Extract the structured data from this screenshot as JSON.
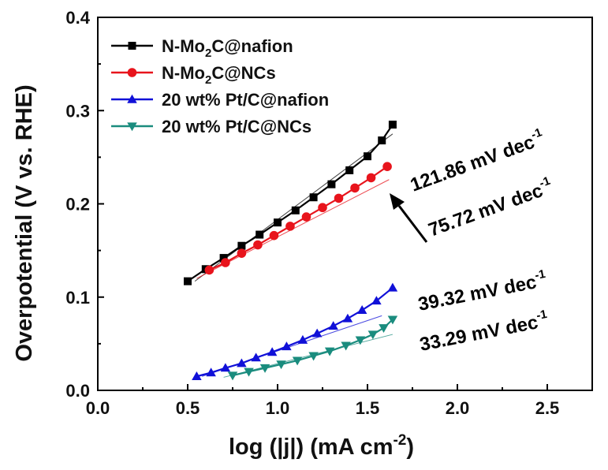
{
  "chart_data": {
    "type": "line",
    "xlabel": "log (|j|) (mA cm",
    "xlabel_sup": "-2",
    "xlabel_tail": ")",
    "ylabel": "Overpotential (V vs. RHE)",
    "xlim": [
      0.0,
      2.75
    ],
    "ylim": [
      0.0,
      0.4
    ],
    "xticks": [
      0.0,
      0.5,
      1.0,
      1.5,
      2.0,
      2.5
    ],
    "xtick_labels": [
      "0.0",
      "0.5",
      "1.0",
      "1.5",
      "2.0",
      "2.5"
    ],
    "yticks": [
      0.0,
      0.1,
      0.2,
      0.3,
      0.4
    ],
    "ytick_labels": [
      "0.0",
      "0.1",
      "0.2",
      "0.3",
      "0.4"
    ],
    "grid": false,
    "legend_position": "top-left",
    "series": [
      {
        "name_parts": [
          "N-Mo",
          "2",
          "C@nafion"
        ],
        "color": "#000000",
        "marker": "square",
        "x": [
          0.5,
          0.6,
          0.7,
          0.8,
          0.9,
          1.0,
          1.1,
          1.2,
          1.3,
          1.4,
          1.5,
          1.58,
          1.64
        ],
        "y": [
          0.117,
          0.13,
          0.142,
          0.155,
          0.167,
          0.18,
          0.193,
          0.207,
          0.221,
          0.236,
          0.251,
          0.268,
          0.285
        ],
        "fit": {
          "x": [
            0.54,
            1.64
          ],
          "y": [
            0.117,
            0.275
          ]
        }
      },
      {
        "name_parts": [
          "N-Mo",
          "2",
          "C@NCs"
        ],
        "color": "#e8141c",
        "marker": "circle",
        "x": [
          0.62,
          0.71,
          0.8,
          0.89,
          0.98,
          1.07,
          1.16,
          1.25,
          1.34,
          1.43,
          1.52,
          1.61
        ],
        "y": [
          0.129,
          0.137,
          0.147,
          0.156,
          0.166,
          0.176,
          0.186,
          0.196,
          0.206,
          0.217,
          0.228,
          0.24
        ],
        "fit": {
          "x": [
            0.55,
            1.62
          ],
          "y": [
            0.12,
            0.226
          ]
        }
      },
      {
        "name_parts": [
          "20 wt% Pt/C@nafion"
        ],
        "color": "#1010d8",
        "marker": "triangle-up",
        "x": [
          0.55,
          0.63,
          0.71,
          0.8,
          0.88,
          0.97,
          1.05,
          1.14,
          1.22,
          1.31,
          1.39,
          1.47,
          1.55,
          1.64
        ],
        "y": [
          0.015,
          0.019,
          0.024,
          0.029,
          0.035,
          0.041,
          0.047,
          0.054,
          0.061,
          0.069,
          0.077,
          0.086,
          0.096,
          0.11
        ],
        "fit": {
          "x": [
            0.58,
            1.58
          ],
          "y": [
            0.015,
            0.08
          ]
        }
      },
      {
        "name_parts": [
          "20 wt% Pt/C@NCs"
        ],
        "color": "#1a8c7e",
        "marker": "triangle-down",
        "x": [
          0.75,
          0.84,
          0.93,
          1.02,
          1.11,
          1.2,
          1.29,
          1.38,
          1.46,
          1.53,
          1.59,
          1.64
        ],
        "y": [
          0.016,
          0.02,
          0.024,
          0.028,
          0.032,
          0.037,
          0.042,
          0.048,
          0.054,
          0.06,
          0.067,
          0.076
        ],
        "fit": {
          "x": [
            0.7,
            1.64
          ],
          "y": [
            0.014,
            0.06
          ]
        }
      }
    ],
    "annotations": [
      {
        "main": "121.86 mV dec",
        "sup": "-1",
        "color": "#000000"
      },
      {
        "main": "75.72 mV dec",
        "sup": "-1",
        "color": "#e8141c"
      },
      {
        "main": "39.32 mV dec",
        "sup": "-1",
        "color": "#1010d8"
      },
      {
        "main": "33.29 mV dec",
        "sup": "-1",
        "color": "#1a8c7e"
      }
    ]
  }
}
